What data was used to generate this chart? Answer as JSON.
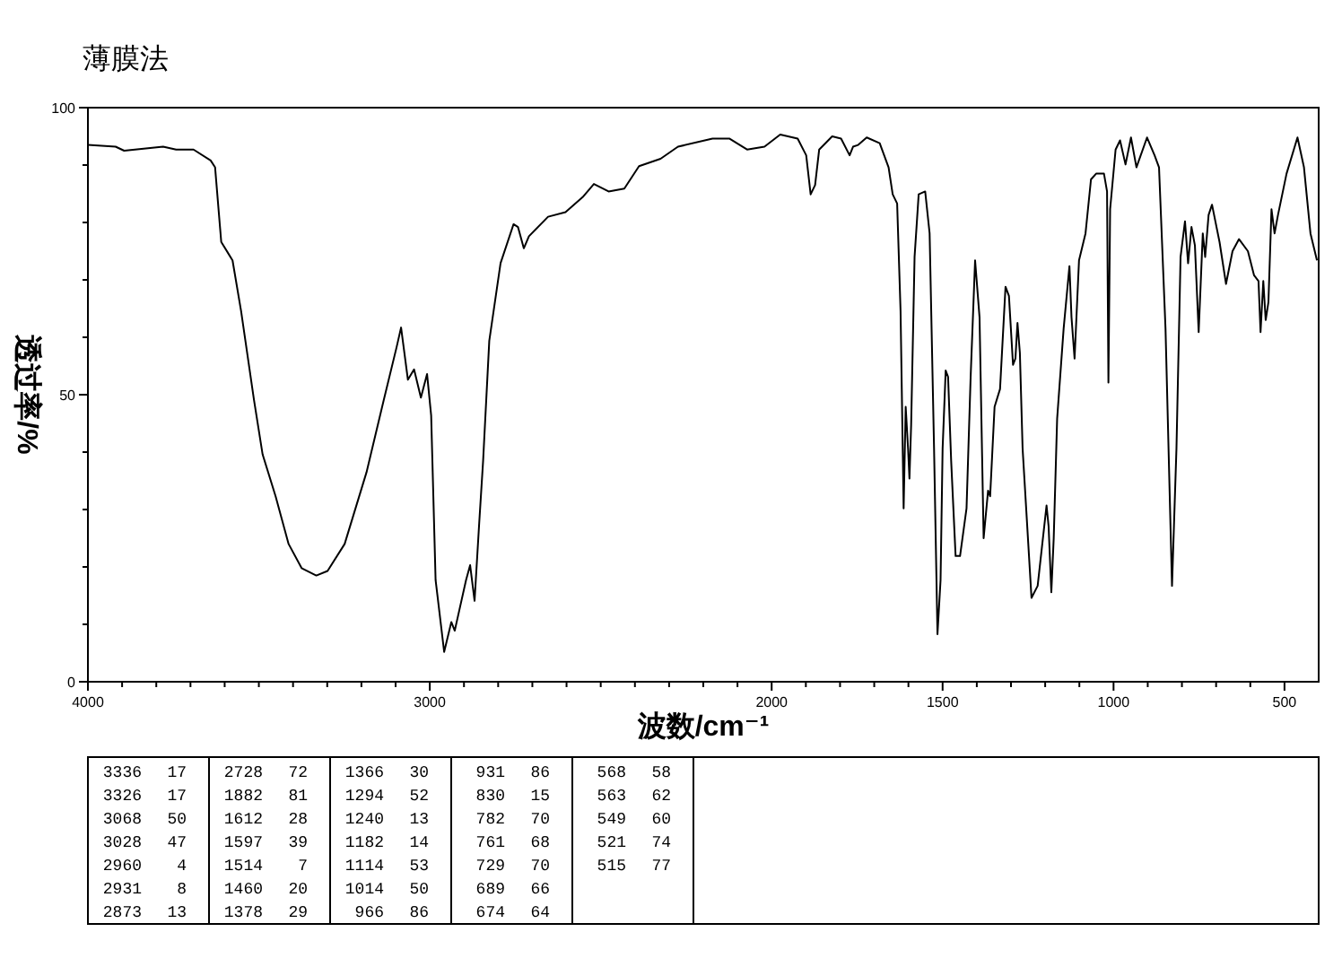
{
  "chart_data": {
    "type": "line",
    "title": "薄膜法",
    "xlabel": "波数/cm⁻¹",
    "ylabel": "透过率/%",
    "xlim": [
      4000,
      400
    ],
    "ylim": [
      0,
      100
    ],
    "xticks": [
      4000,
      {
        "value": 3900,
        "label": null
      },
      {
        "value": 3800,
        "label": null
      },
      {
        "value": 3700,
        "label": null
      },
      {
        "value": 3600,
        "label": null
      },
      {
        "value": 3500,
        "label": null
      },
      {
        "value": 3400,
        "label": null
      },
      {
        "value": 3300,
        "label": null
      },
      {
        "value": 3200,
        "label": null
      },
      {
        "value": 3100,
        "label": null
      },
      3000,
      {
        "value": 2900,
        "label": null
      },
      {
        "value": 2800,
        "label": null
      },
      {
        "value": 2700,
        "label": null
      },
      {
        "value": 2600,
        "label": null
      },
      {
        "value": 2500,
        "label": null
      },
      {
        "value": 2400,
        "label": null
      },
      {
        "value": 2300,
        "label": null
      },
      {
        "value": 2200,
        "label": null
      },
      {
        "value": 2100,
        "label": null
      },
      2000,
      {
        "value": 1900,
        "label": null
      },
      {
        "value": 1800,
        "label": null
      },
      {
        "value": 1700,
        "label": null
      },
      {
        "value": 1600,
        "label": null
      },
      1500,
      {
        "value": 1400,
        "label": null
      },
      {
        "value": 1300,
        "label": null
      },
      {
        "value": 1200,
        "label": null
      },
      {
        "value": 1100,
        "label": null
      },
      1000,
      {
        "value": 900,
        "label": null
      },
      {
        "value": 800,
        "label": null
      },
      {
        "value": 700,
        "label": null
      },
      {
        "value": 600,
        "label": null
      },
      500
    ],
    "yticks": [
      0,
      {
        "value": 10,
        "label": null
      },
      {
        "value": 20,
        "label": null
      },
      {
        "value": 30,
        "label": null
      },
      {
        "value": 40,
        "label": null
      },
      50,
      {
        "value": 60,
        "label": null
      },
      {
        "value": 70,
        "label": null
      },
      {
        "value": 80,
        "label": null
      },
      {
        "value": 90,
        "label": null
      },
      100
    ],
    "grid": false,
    "marker": "none",
    "line_style": "solid",
    "series": [
      {
        "color": "#000000",
        "x": [
          4000,
          3919,
          3894,
          3780,
          3742,
          3691,
          3641,
          3628,
          3610,
          3577,
          3552,
          3514,
          3489,
          3451,
          3413,
          3375,
          3332,
          3299,
          3249,
          3185,
          3135,
          3097,
          3084,
          3064,
          3046,
          3026,
          3008,
          2996,
          2983,
          2958,
          2937,
          2927,
          2894,
          2882,
          2869,
          2856,
          2844,
          2826,
          2793,
          2755,
          2742,
          2725,
          2710,
          2654,
          2603,
          2553,
          2520,
          2477,
          2431,
          2388,
          2325,
          2274,
          2173,
          2123,
          2072,
          2021,
          1975,
          1924,
          1899,
          1886,
          1873,
          1861,
          1823,
          1797,
          1772,
          1762,
          1747,
          1722,
          1684,
          1658,
          1646,
          1633,
          1623,
          1614,
          1608,
          1601,
          1597,
          1592,
          1582,
          1570,
          1551,
          1538,
          1525,
          1515,
          1506,
          1500,
          1491,
          1484,
          1475,
          1462,
          1449,
          1430,
          1418,
          1405,
          1392,
          1380,
          1367,
          1361,
          1348,
          1332,
          1316,
          1306,
          1294,
          1287,
          1281,
          1274,
          1266,
          1240,
          1222,
          1196,
          1190,
          1182,
          1175,
          1165,
          1146,
          1129,
          1123,
          1114,
          1101,
          1082,
          1066,
          1051,
          1028,
          1019,
          1015,
          1010,
          994,
          981,
          965,
          949,
          933,
          902,
          880,
          867,
          848,
          829,
          816,
          804,
          791,
          782,
          772,
          762,
          751,
          739,
          732,
          722,
          712,
          690,
          671,
          652,
          633,
          607,
          589,
          576,
          570,
          562,
          555,
          547,
          538,
          529,
          519,
          494,
          462,
          443,
          424,
          405
        ],
        "values": [
          93.5,
          93.2,
          92.5,
          93.2,
          92.7,
          92.7,
          90.8,
          89.6,
          76.6,
          73.4,
          64.6,
          49,
          39.6,
          32.3,
          24,
          19.8,
          18.5,
          19.3,
          24,
          36.5,
          49,
          58.3,
          61.7,
          52.6,
          54.4,
          49.5,
          53.6,
          46.4,
          17.7,
          5.2,
          10.4,
          8.9,
          17.7,
          20.3,
          14.1,
          27.1,
          38.5,
          59.4,
          72.9,
          79.7,
          79.2,
          75.5,
          77.6,
          81,
          81.8,
          84.4,
          86.7,
          85.4,
          85.9,
          89.8,
          91.1,
          93.2,
          94.6,
          94.6,
          92.7,
          93.2,
          95.3,
          94.6,
          91.7,
          84.9,
          86.5,
          92.7,
          95,
          94.6,
          91.7,
          93.2,
          93.5,
          94.8,
          93.8,
          89.6,
          84.9,
          83.3,
          64.6,
          30.2,
          47.9,
          40.6,
          35.4,
          44.8,
          74,
          84.9,
          85.4,
          78.1,
          40.6,
          8.3,
          17.7,
          40.6,
          54.2,
          53.1,
          38.5,
          21.9,
          21.9,
          30.2,
          53.1,
          73.4,
          63.5,
          25,
          33.3,
          32.3,
          47.9,
          51,
          68.8,
          67.2,
          55.2,
          56.3,
          62.5,
          57.3,
          40.6,
          14.6,
          16.7,
          30.7,
          27.1,
          15.6,
          25,
          45.8,
          61.5,
          72.4,
          63.5,
          56.3,
          73.4,
          78.1,
          87.5,
          88.5,
          88.5,
          85.4,
          52.1,
          82.3,
          92.7,
          94.3,
          90.1,
          94.8,
          89.6,
          94.8,
          91.7,
          89.6,
          61.5,
          16.7,
          40.6,
          74,
          80.2,
          72.9,
          79.2,
          76,
          60.9,
          78.1,
          74,
          81.3,
          83.1,
          76.6,
          69.3,
          75,
          77.1,
          75,
          70.8,
          69.8,
          60.9,
          69.8,
          63,
          66.1,
          82.3,
          78.1,
          81.3,
          88.5,
          94.8,
          89.6,
          78.1,
          73.4
        ]
      }
    ],
    "annotations": [
      "3336 17",
      "3326 17",
      "3068 50",
      "3028 47",
      "2960 4",
      "2931 8",
      "2873 13",
      "2728 72",
      "1882 81",
      "1612 28",
      "1597 39",
      "1514 7",
      "1460 20",
      "1378 29",
      "1366 30",
      "1294 52",
      "1240 13",
      "1182 14",
      "1114 53",
      "1014 50",
      "966 86",
      "931 86",
      "830 15",
      "782 70",
      "761 68",
      "729 70",
      "689 66",
      "674 64",
      "568 58",
      "563 62",
      "549 60",
      "521 74",
      "515 77"
    ]
  }
}
